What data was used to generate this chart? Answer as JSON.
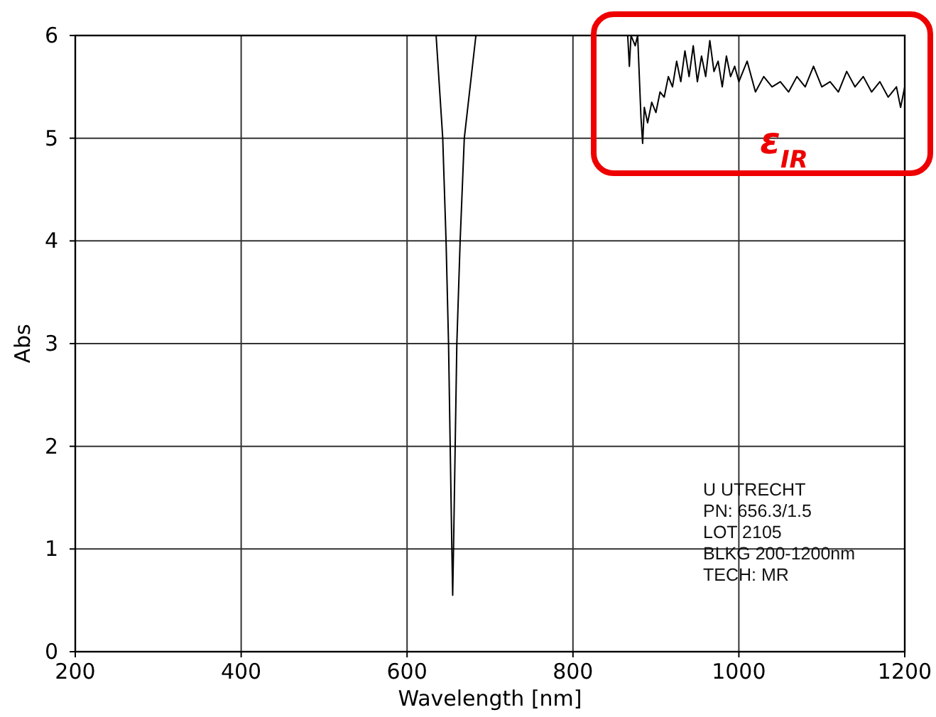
{
  "chart_data": {
    "type": "line",
    "xlabel": "Wavelength  [nm]",
    "ylabel": "Abs",
    "xlim": [
      200,
      1200
    ],
    "ylim": [
      0,
      6
    ],
    "xticks": [
      200,
      400,
      600,
      800,
      1000,
      1200
    ],
    "yticks": [
      0,
      1,
      2,
      3,
      4,
      5,
      6
    ],
    "grid": true,
    "marker": "none",
    "line_style": "solid",
    "series": [
      {
        "color": "#000000",
        "x": [
          200,
          635,
          643,
          647,
          650,
          652,
          654,
          655,
          656,
          658,
          660,
          664,
          669,
          683,
          866,
          868,
          870,
          875,
          878,
          882,
          884,
          886,
          890,
          895,
          900,
          905,
          910,
          915,
          920,
          925,
          930,
          935,
          940,
          945,
          950,
          955,
          960,
          965,
          970,
          975,
          980,
          985,
          990,
          995,
          1000,
          1010,
          1020,
          1030,
          1040,
          1050,
          1060,
          1070,
          1080,
          1090,
          1100,
          1110,
          1120,
          1130,
          1140,
          1150,
          1160,
          1170,
          1180,
          1190,
          1195,
          1200
        ],
        "values": [
          6,
          6,
          5,
          4,
          3,
          2,
          1,
          0.55,
          1,
          2,
          3,
          4,
          5,
          6,
          6,
          5.7,
          6,
          5.9,
          6,
          5.2,
          4.95,
          5.3,
          5.15,
          5.35,
          5.25,
          5.45,
          5.4,
          5.6,
          5.5,
          5.75,
          5.55,
          5.85,
          5.6,
          5.9,
          5.55,
          5.8,
          5.6,
          5.95,
          5.65,
          5.75,
          5.5,
          5.8,
          5.6,
          5.7,
          5.55,
          5.75,
          5.45,
          5.6,
          5.5,
          5.55,
          5.45,
          5.6,
          5.5,
          5.7,
          5.5,
          5.55,
          5.45,
          5.65,
          5.5,
          5.6,
          5.45,
          5.55,
          5.4,
          5.5,
          5.3,
          5.5
        ]
      }
    ],
    "annotations": [
      "ε$_{IR}$",
      "U UTRECHT",
      "PN: 656.3/1.5",
      "LOT 2105",
      "BLKG 200-1200nm",
      "TECH: MR"
    ]
  }
}
